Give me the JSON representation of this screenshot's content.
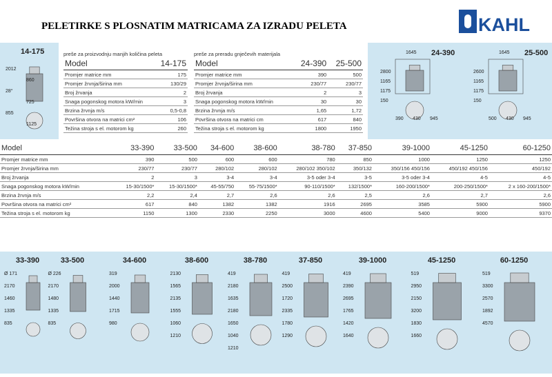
{
  "header": {
    "title": "PELETIRKE S PLOSNATIM MATRICAMA ZA IZRADU PELETA",
    "logo": "KAHL"
  },
  "small_press": {
    "model": "14-175",
    "dimensions": [
      "2012",
      "860",
      "28°",
      "725",
      "855",
      "1125"
    ]
  },
  "table_small": {
    "caption": "preše za proizvodnju manjih količina peleta",
    "header": [
      "Model",
      "14-175"
    ],
    "rows": [
      [
        "Promjer matrice   mm",
        "175"
      ],
      [
        "Promjer žrvnja/širina   mm",
        "130/29"
      ],
      [
        "Broj žrvanja",
        "2"
      ],
      [
        "Snaga pogonskog motora  kW/min",
        "3"
      ],
      [
        "Brzina žrvnja   m/s",
        "0,5-0,8"
      ],
      [
        "Površina otvora na matrici  cm²",
        "106"
      ],
      [
        "Težina stroja s el. motorom   kg",
        "260"
      ]
    ]
  },
  "table_medium": {
    "caption": "preše za preradu gnječevih materijala",
    "header": [
      "Model",
      "24-390",
      "25-500"
    ],
    "rows": [
      [
        "Promjer matrice   mm",
        "390",
        "500"
      ],
      [
        "Promjer žrvnja/širina   mm",
        "230/77",
        "230/77"
      ],
      [
        "Broj žrvanja",
        "2",
        "3"
      ],
      [
        "Snaga pogonskog motora  kW/min",
        "30",
        "30"
      ],
      [
        "Brzina žrvnja   m/s",
        "1,65",
        "1,72"
      ],
      [
        "Površina otvora na matrici   cm",
        "617",
        "840"
      ],
      [
        "Težina stroja s el. motorom   kg",
        "1800",
        "1950"
      ]
    ]
  },
  "medium_presses": [
    {
      "model": "24-390",
      "dimensions": [
        "1645",
        "2800",
        "1165",
        "1175",
        "150",
        "390",
        "430",
        "945"
      ]
    },
    {
      "model": "25-500",
      "dimensions": [
        "1645",
        "2600",
        "1165",
        "1175",
        "150",
        "500",
        "430",
        "945"
      ]
    }
  ],
  "table_large": {
    "header": [
      "Model",
      "33-390",
      "33-500",
      "34-600",
      "38-600",
      "38-780",
      "37-850",
      "39-1000",
      "45-1250",
      "60-1250"
    ],
    "rows": [
      [
        "Promjer matrice   mm",
        "390",
        "500",
        "600",
        "600",
        "780",
        "850",
        "1000",
        "1250",
        "1250"
      ],
      [
        "Promjer žrvnja/širina   mm",
        "230/77",
        "230/77",
        "280/102",
        "280/102",
        "280/102  350/102",
        "350/132",
        "350/156  450/156",
        "450/192  450/156",
        "450/192"
      ],
      [
        "Broj žrvanja",
        "2",
        "3",
        "3-4",
        "3-4",
        "3-5 oder 3-4",
        "3-5",
        "3-5 oder 3-4",
        "4-5",
        "4-5"
      ],
      [
        "Snaga pogonskog motora  kW/min",
        "15-30/1500*",
        "15-30/1500*",
        "45-55/750",
        "55-75/1500*",
        "90-110/1500*",
        "132/1500*",
        "160-200/1500*",
        "200-250/1500*",
        "2 x 160-200/1500*"
      ],
      [
        "Brzina žrvnja   m/s",
        "2,2",
        "2,4",
        "2,7",
        "2,6",
        "2,6",
        "2,5",
        "2,6",
        "2,7",
        "2,6"
      ],
      [
        "Površina otvora na matrici  cm²",
        "617",
        "840",
        "1382",
        "1382",
        "1916",
        "2695",
        "3585",
        "5900",
        "5900"
      ],
      [
        "Težina stroja s el. motorom   kg",
        "1150",
        "1300",
        "2330",
        "2250",
        "3000",
        "4600",
        "5400",
        "9000",
        "9370"
      ]
    ]
  },
  "large_presses": [
    {
      "model": "33-390",
      "dimensions": [
        "Ø 171",
        "2170",
        "1460",
        "1335",
        "835"
      ]
    },
    {
      "model": "33-500",
      "dimensions": [
        "Ø 226",
        "2170",
        "1480",
        "1335",
        "835"
      ]
    },
    {
      "model": "34-600",
      "dimensions": [
        "319",
        "2000",
        "1440",
        "1715",
        "980"
      ]
    },
    {
      "model": "38-600",
      "dimensions": [
        "2130",
        "1565",
        "2135",
        "1555",
        "1060",
        "1210"
      ]
    },
    {
      "model": "38-780",
      "dimensions": [
        "419",
        "2180",
        "1635",
        "2180",
        "1650",
        "1040",
        "1210"
      ]
    },
    {
      "model": "37-850",
      "dimensions": [
        "419",
        "2500",
        "1720",
        "2335",
        "1780",
        "1290"
      ]
    },
    {
      "model": "39-1000",
      "dimensions": [
        "419",
        "2390",
        "2695",
        "1765",
        "1420",
        "1640"
      ]
    },
    {
      "model": "45-1250",
      "dimensions": [
        "519",
        "2950",
        "2150",
        "3200",
        "1830",
        "1660"
      ]
    },
    {
      "model": "60-1250",
      "dimensions": [
        "519",
        "3300",
        "2570",
        "1892",
        "4570"
      ]
    }
  ]
}
